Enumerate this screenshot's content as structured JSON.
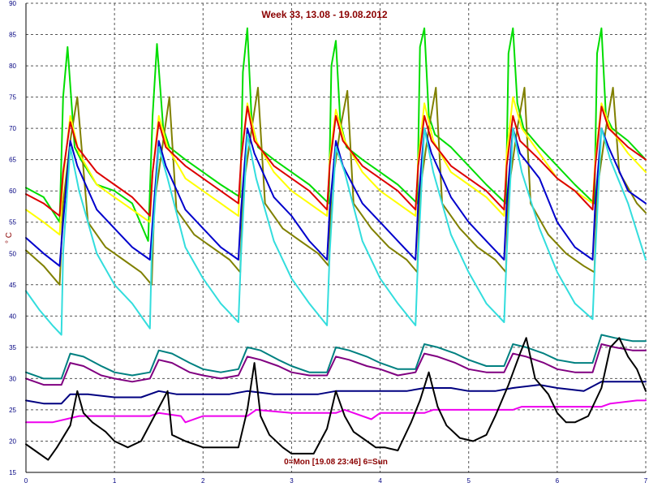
{
  "chart_data": {
    "type": "line",
    "title": "Week 33, 13.08 - 19.08.2012",
    "ylabel": "° C",
    "xlabel": "0=Mon [19.08 23:46] 6=Sun",
    "xlim": [
      0,
      7
    ],
    "ylim": [
      15,
      90
    ],
    "x_ticks": [
      0,
      1,
      2,
      3,
      4,
      5,
      6,
      7
    ],
    "y_ticks": [
      15,
      20,
      25,
      30,
      35,
      40,
      45,
      50,
      55,
      60,
      65,
      70,
      75,
      80,
      85,
      90
    ],
    "grid": true,
    "series": [
      {
        "color": "#00dd00",
        "x": [
          0.0,
          0.2,
          0.38,
          0.42,
          0.47,
          0.55,
          0.62,
          0.8,
          1.0,
          1.2,
          1.38,
          1.43,
          1.48,
          1.55,
          1.62,
          1.8,
          2.0,
          2.2,
          2.42,
          2.45,
          2.5,
          2.55,
          2.62,
          2.8,
          3.0,
          3.2,
          3.42,
          3.45,
          3.5,
          3.55,
          3.62,
          3.8,
          4.0,
          4.2,
          4.42,
          4.45,
          4.5,
          4.55,
          4.62,
          4.8,
          5.0,
          5.2,
          5.42,
          5.45,
          5.5,
          5.55,
          5.62,
          5.8,
          6.0,
          6.2,
          6.42,
          6.45,
          6.5,
          6.55,
          6.62,
          6.8,
          7.0
        ],
        "y": [
          60.5,
          59,
          55,
          75,
          83,
          67,
          65,
          61,
          60,
          58,
          52,
          72,
          83.5,
          70,
          67,
          65,
          63,
          61,
          59,
          79,
          86,
          71,
          67,
          65,
          63,
          61,
          58,
          80,
          84,
          71,
          67,
          65,
          63,
          61,
          58,
          83,
          86,
          72,
          69,
          67,
          64,
          61,
          58,
          82,
          86,
          74,
          70,
          67,
          64,
          61,
          58,
          82,
          86,
          72,
          70,
          68,
          65
        ]
      },
      {
        "color": "#808000",
        "x": [
          0.0,
          0.2,
          0.38,
          0.42,
          0.5,
          0.58,
          0.7,
          0.9,
          1.1,
          1.3,
          1.42,
          1.45,
          1.55,
          1.62,
          1.7,
          1.9,
          2.1,
          2.3,
          2.42,
          2.45,
          2.55,
          2.62,
          2.7,
          2.9,
          3.1,
          3.3,
          3.42,
          3.45,
          3.55,
          3.63,
          3.7,
          3.9,
          4.1,
          4.3,
          4.42,
          4.45,
          4.55,
          4.63,
          4.7,
          4.9,
          5.1,
          5.3,
          5.42,
          5.45,
          5.55,
          5.63,
          5.7,
          5.9,
          6.1,
          6.3,
          6.42,
          6.45,
          6.55,
          6.63,
          6.7,
          6.9,
          7.0
        ],
        "y": [
          50.5,
          48,
          45,
          58,
          68,
          75,
          55,
          51,
          49,
          47,
          45,
          58,
          68,
          75,
          57,
          53,
          51,
          49,
          47,
          60,
          70,
          76.5,
          58,
          54,
          52,
          50,
          48,
          60,
          70,
          76,
          58,
          54,
          51,
          49,
          47,
          60,
          70,
          76.5,
          58,
          54,
          51,
          49,
          47,
          60,
          70,
          76.5,
          58,
          53,
          50,
          48,
          47,
          60,
          70,
          76.5,
          63,
          58,
          56.5
        ]
      },
      {
        "color": "#ffff00",
        "x": [
          0.0,
          0.2,
          0.38,
          0.42,
          0.5,
          0.6,
          0.8,
          1.0,
          1.2,
          1.4,
          1.43,
          1.5,
          1.6,
          1.8,
          2.0,
          2.2,
          2.4,
          2.43,
          2.5,
          2.6,
          2.8,
          3.0,
          3.2,
          3.4,
          3.43,
          3.5,
          3.6,
          3.8,
          4.0,
          4.2,
          4.4,
          4.43,
          4.5,
          4.6,
          4.8,
          5.0,
          5.2,
          5.4,
          5.43,
          5.5,
          5.6,
          5.8,
          6.0,
          6.2,
          6.4,
          6.43,
          6.5,
          6.6,
          6.8,
          7.0
        ],
        "y": [
          57,
          55,
          53,
          62,
          72,
          66,
          61,
          59,
          57,
          55,
          63,
          72,
          67,
          62,
          60,
          58,
          56,
          65,
          74,
          68,
          63,
          60,
          58,
          56,
          65,
          73,
          68,
          63,
          60,
          58,
          56,
          65,
          74,
          68,
          63,
          61,
          59,
          56,
          66,
          75,
          70,
          66,
          62,
          60,
          58,
          65,
          74,
          70,
          66,
          63
        ]
      },
      {
        "color": "#dd0000",
        "x": [
          0.0,
          0.2,
          0.38,
          0.42,
          0.5,
          0.58,
          0.8,
          1.0,
          1.2,
          1.4,
          1.43,
          1.5,
          1.58,
          1.8,
          2.0,
          2.2,
          2.4,
          2.43,
          2.5,
          2.58,
          2.8,
          3.0,
          3.2,
          3.4,
          3.43,
          3.5,
          3.58,
          3.8,
          4.0,
          4.2,
          4.4,
          4.43,
          4.5,
          4.58,
          4.8,
          5.0,
          5.2,
          5.4,
          5.43,
          5.5,
          5.58,
          5.8,
          6.0,
          6.2,
          6.4,
          6.43,
          6.5,
          6.58,
          6.8,
          7.0
        ],
        "y": [
          59.5,
          58,
          56,
          63,
          71,
          67,
          63,
          61,
          59,
          56,
          63,
          71,
          67,
          64,
          62,
          60,
          58,
          65,
          73.5,
          68,
          64,
          62,
          60,
          57,
          64,
          72,
          68,
          64,
          62,
          60,
          57,
          64,
          72,
          68,
          64,
          62,
          60,
          57,
          64,
          72,
          68,
          65,
          62,
          60,
          57,
          64,
          73.5,
          70,
          67,
          65
        ]
      },
      {
        "color": "#0000cc",
        "x": [
          0.0,
          0.2,
          0.38,
          0.42,
          0.5,
          0.58,
          0.8,
          1.0,
          1.2,
          1.4,
          1.43,
          1.5,
          1.58,
          1.8,
          2.0,
          2.2,
          2.4,
          2.43,
          2.5,
          2.58,
          2.8,
          3.0,
          3.2,
          3.4,
          3.43,
          3.5,
          3.58,
          3.8,
          4.0,
          4.2,
          4.4,
          4.43,
          4.5,
          4.58,
          4.8,
          5.0,
          5.2,
          5.4,
          5.43,
          5.5,
          5.58,
          5.8,
          6.0,
          6.2,
          6.4,
          6.43,
          6.5,
          6.58,
          6.8,
          7.0
        ],
        "y": [
          52.5,
          50,
          48,
          55,
          68,
          64,
          57,
          54,
          51,
          49,
          55,
          68,
          64,
          57,
          54,
          51,
          49,
          57,
          70,
          66,
          59,
          56,
          52,
          49,
          57,
          68,
          64,
          58,
          55,
          52,
          49,
          58,
          70,
          66,
          59,
          55,
          52,
          49,
          58,
          70,
          66,
          62,
          55,
          51,
          49,
          58,
          70,
          67,
          60,
          58
        ]
      },
      {
        "color": "#33dddd",
        "x": [
          0.0,
          0.15,
          0.3,
          0.4,
          0.42,
          0.5,
          0.6,
          0.8,
          1.0,
          1.2,
          1.35,
          1.4,
          1.42,
          1.5,
          1.6,
          1.8,
          2.0,
          2.2,
          2.4,
          2.43,
          2.5,
          2.6,
          2.8,
          3.0,
          3.2,
          3.4,
          3.43,
          3.5,
          3.6,
          3.8,
          4.0,
          4.2,
          4.4,
          4.43,
          4.5,
          4.6,
          4.8,
          5.0,
          5.2,
          5.4,
          5.43,
          5.5,
          5.6,
          5.8,
          6.0,
          6.2,
          6.4,
          6.43,
          6.5,
          6.6,
          6.8,
          7.0
        ],
        "y": [
          44,
          41,
          38.5,
          37,
          50,
          67,
          60,
          50,
          45,
          42,
          39,
          38,
          50,
          67,
          62,
          51,
          46,
          42,
          39,
          50,
          69,
          62,
          52,
          46,
          42,
          38.5,
          50,
          67,
          63,
          52,
          46,
          42,
          38.5,
          50,
          70,
          63,
          53,
          47,
          42,
          39,
          50,
          70,
          63,
          54,
          47,
          42,
          39.5,
          50,
          70,
          65,
          58,
          49
        ]
      },
      {
        "color": "#008080",
        "x": [
          0.0,
          0.2,
          0.4,
          0.5,
          0.65,
          0.85,
          1.0,
          1.2,
          1.4,
          1.5,
          1.65,
          1.85,
          2.0,
          2.2,
          2.4,
          2.5,
          2.65,
          2.85,
          3.0,
          3.2,
          3.4,
          3.5,
          3.65,
          3.85,
          4.0,
          4.2,
          4.4,
          4.5,
          4.65,
          4.85,
          5.0,
          5.2,
          5.4,
          5.5,
          5.65,
          5.85,
          6.0,
          6.2,
          6.4,
          6.5,
          6.65,
          6.85,
          7.0
        ],
        "y": [
          31,
          30,
          30,
          34,
          33.5,
          32,
          31,
          30.5,
          31,
          34.5,
          34,
          32.5,
          31.5,
          31,
          31.5,
          35,
          34.5,
          33,
          32,
          31,
          31,
          35,
          34.5,
          33.5,
          32.5,
          31.5,
          31.5,
          35.5,
          35,
          34,
          33,
          32,
          32,
          35.5,
          35,
          34,
          33,
          32.5,
          32.5,
          37,
          36.5,
          36,
          36
        ]
      },
      {
        "color": "#800080",
        "x": [
          0.0,
          0.2,
          0.4,
          0.5,
          0.65,
          0.85,
          1.0,
          1.2,
          1.4,
          1.5,
          1.65,
          1.85,
          2.0,
          2.2,
          2.4,
          2.5,
          2.65,
          2.85,
          3.0,
          3.2,
          3.4,
          3.5,
          3.65,
          3.85,
          4.0,
          4.2,
          4.4,
          4.5,
          4.65,
          4.85,
          5.0,
          5.2,
          5.4,
          5.5,
          5.65,
          5.85,
          6.0,
          6.2,
          6.4,
          6.5,
          6.65,
          6.85,
          7.0
        ],
        "y": [
          30,
          29,
          29,
          32.5,
          32,
          30.5,
          30,
          29.5,
          30,
          33,
          32.5,
          31,
          30.5,
          30,
          30.5,
          33.5,
          33,
          32,
          31,
          30.5,
          30.5,
          33.5,
          33,
          32,
          31.5,
          30.5,
          31,
          34,
          33.5,
          32.5,
          31.5,
          31,
          31,
          34,
          33.5,
          32.5,
          31.5,
          31,
          31,
          35.5,
          35,
          34.5,
          34.5
        ]
      },
      {
        "color": "#000080",
        "x": [
          0.0,
          0.2,
          0.4,
          0.5,
          0.7,
          1.0,
          1.3,
          1.5,
          1.7,
          2.0,
          2.3,
          2.5,
          2.8,
          3.0,
          3.3,
          3.5,
          3.8,
          4.0,
          4.3,
          4.5,
          4.8,
          5.0,
          5.3,
          5.5,
          5.8,
          6.0,
          6.3,
          6.5,
          6.8,
          7.0
        ],
        "y": [
          26.5,
          26,
          26,
          27.5,
          27.5,
          27,
          27,
          28,
          27.5,
          27.5,
          27.5,
          28,
          27.5,
          27.5,
          27.5,
          28,
          28,
          28,
          28,
          28.5,
          28.5,
          28,
          28,
          28.5,
          29,
          28.5,
          28,
          29.5,
          29.5,
          29.5
        ]
      },
      {
        "color": "#ee00ee",
        "x": [
          0.0,
          0.3,
          0.45,
          0.6,
          1.0,
          1.4,
          1.5,
          1.75,
          1.8,
          2.0,
          2.5,
          2.6,
          3.0,
          3.5,
          3.6,
          3.9,
          4.0,
          4.5,
          4.6,
          5.0,
          5.5,
          5.6,
          6.0,
          6.5,
          6.6,
          6.9,
          7.0
        ],
        "y": [
          23,
          23,
          23.5,
          24,
          24,
          24,
          24.5,
          24,
          23,
          24,
          24,
          25,
          24.5,
          24.5,
          25,
          23.5,
          24.5,
          24.5,
          25,
          25,
          25,
          25.5,
          25.5,
          25.5,
          26,
          26.5,
          26.5
        ]
      },
      {
        "color": "#000000",
        "x": [
          0.0,
          0.1,
          0.25,
          0.35,
          0.5,
          0.58,
          0.65,
          0.75,
          0.9,
          1.0,
          1.15,
          1.3,
          1.45,
          1.6,
          1.65,
          1.8,
          2.0,
          2.2,
          2.4,
          2.5,
          2.58,
          2.65,
          2.75,
          2.9,
          3.0,
          3.1,
          3.25,
          3.4,
          3.5,
          3.6,
          3.7,
          3.85,
          3.95,
          4.05,
          4.2,
          4.35,
          4.45,
          4.55,
          4.65,
          4.75,
          4.9,
          5.05,
          5.2,
          5.3,
          5.45,
          5.58,
          5.65,
          5.75,
          5.9,
          6.0,
          6.1,
          6.2,
          6.35,
          6.5,
          6.6,
          6.7,
          6.8,
          6.9,
          7.0
        ],
        "y": [
          19.5,
          18.5,
          17,
          19,
          22.5,
          28,
          24.5,
          23,
          21.5,
          20,
          19,
          20,
          24,
          28,
          21,
          20,
          19,
          19,
          19,
          25,
          32.5,
          24,
          21,
          19,
          18,
          18,
          18,
          22,
          28,
          24,
          21.5,
          20,
          19,
          19,
          18.5,
          23,
          26.5,
          31,
          25.5,
          22.5,
          20.5,
          20,
          21,
          24,
          29,
          34,
          36.5,
          30,
          27.5,
          24.5,
          23,
          23,
          24,
          28.5,
          35,
          36.5,
          33.5,
          31.5,
          28
        ]
      }
    ]
  }
}
